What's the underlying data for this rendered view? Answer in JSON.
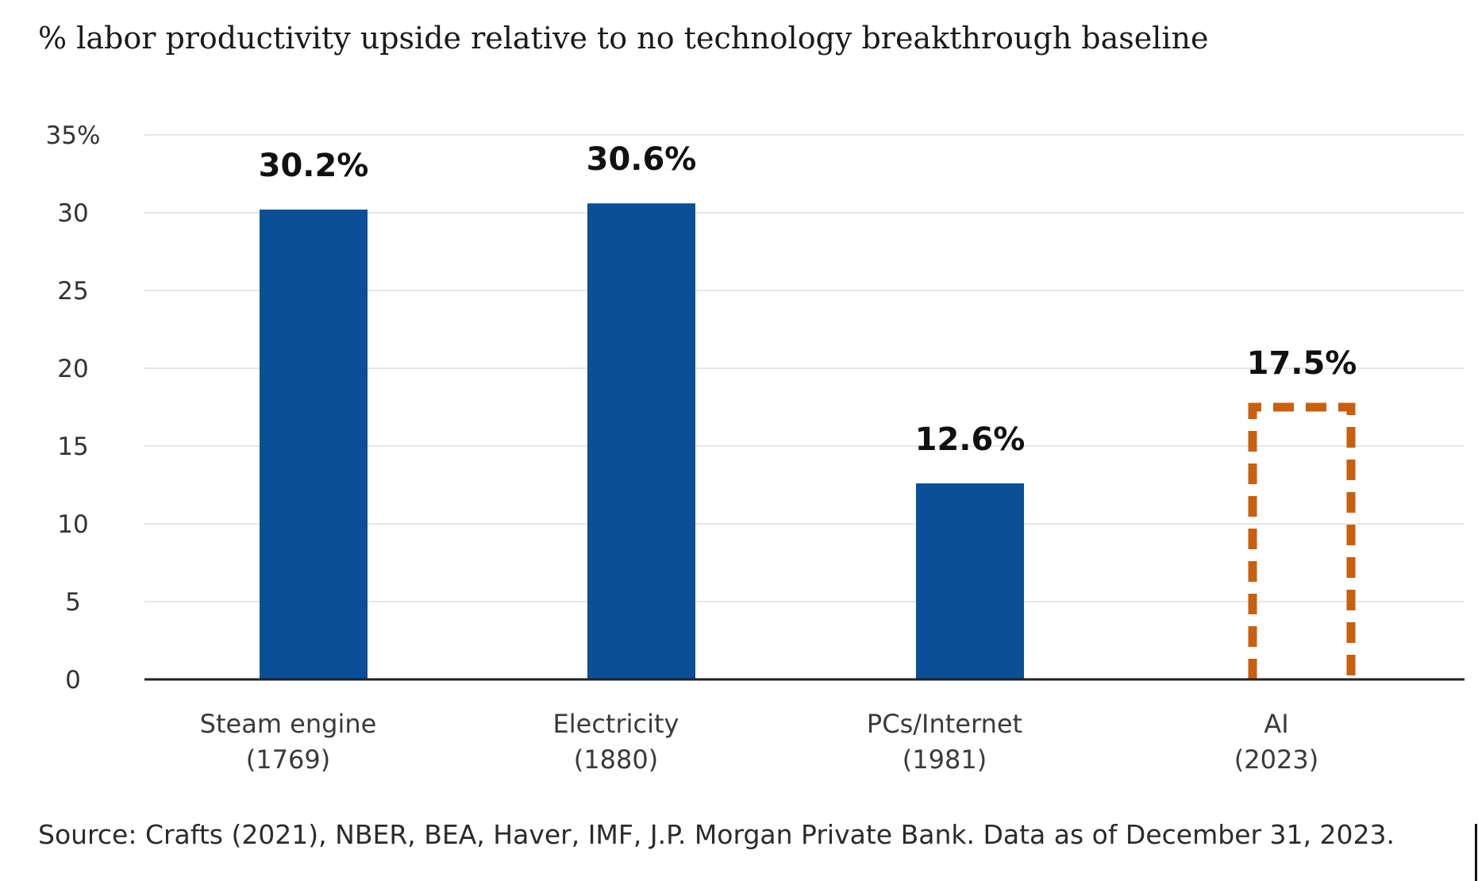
{
  "title": "% labor productivity upside relative to no technology breakthrough baseline",
  "source": "Source: Crafts (2021), NBER, BEA, Haver, IMF, J.P. Morgan Private Bank. Data as of December 31, 2023.",
  "colors": {
    "bar": "#0a4f97",
    "projected": "#c8600f",
    "grid": "#e6e6e6",
    "axis": "#222222"
  },
  "chart_data": {
    "type": "bar",
    "categories": [
      {
        "line1": "Steam engine",
        "line2": "(1769)"
      },
      {
        "line1": "Electricity",
        "line2": "(1880)"
      },
      {
        "line1": "PCs/Internet",
        "line2": "(1981)"
      },
      {
        "line1": "AI",
        "line2": "(2023)"
      }
    ],
    "values": [
      30.2,
      30.6,
      12.6,
      17.5
    ],
    "value_labels": [
      "30.2%",
      "30.6%",
      "12.6%",
      "17.5%"
    ],
    "bar_styles": [
      "solid",
      "solid",
      "solid",
      "dashed-outline"
    ],
    "ylim": [
      0,
      35
    ],
    "yticks": [
      0,
      5,
      10,
      15,
      20,
      25,
      30,
      35
    ],
    "ytick_labels": [
      "0",
      "5",
      "10",
      "15",
      "20",
      "25",
      "30",
      "35%"
    ],
    "grid": true,
    "xlabel": "",
    "ylabel": ""
  }
}
